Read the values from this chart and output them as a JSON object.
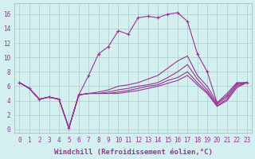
{
  "xlabel": "Windchill (Refroidissement éolien,°C)",
  "bg_color": "#d4efef",
  "grid_color": "#aacccc",
  "line_color": "#993399",
  "x_ticks": [
    0,
    1,
    2,
    3,
    4,
    5,
    6,
    7,
    8,
    9,
    10,
    11,
    12,
    13,
    14,
    15,
    16,
    17,
    18,
    19,
    20,
    21,
    22,
    23
  ],
  "y_ticks": [
    0,
    2,
    4,
    6,
    8,
    10,
    12,
    14,
    16
  ],
  "ylim": [
    -0.5,
    17.5
  ],
  "xlim": [
    -0.5,
    23.5
  ],
  "lines": [
    {
      "y": [
        6.5,
        5.7,
        4.2,
        4.5,
        4.2,
        0.2,
        4.8,
        7.5,
        10.5,
        11.5,
        13.7,
        13.2,
        15.5,
        15.7,
        15.5,
        16.0,
        16.2,
        15.0,
        10.5,
        8.0,
        3.7,
        4.7,
        6.4,
        6.5
      ],
      "marker": true
    },
    {
      "y": [
        6.5,
        5.7,
        4.2,
        4.5,
        4.2,
        0.2,
        4.8,
        5.0,
        5.2,
        5.5,
        6.0,
        6.2,
        6.5,
        7.0,
        7.5,
        8.5,
        9.5,
        10.2,
        7.5,
        6.0,
        3.7,
        5.0,
        6.5,
        6.5
      ],
      "marker": false
    },
    {
      "y": [
        6.5,
        5.7,
        4.2,
        4.5,
        4.2,
        0.2,
        4.8,
        5.0,
        5.0,
        5.2,
        5.5,
        5.7,
        6.0,
        6.2,
        6.5,
        7.2,
        8.0,
        9.0,
        7.0,
        5.5,
        3.5,
        4.5,
        6.2,
        6.5
      ],
      "marker": false
    },
    {
      "y": [
        6.5,
        5.7,
        4.2,
        4.5,
        4.2,
        0.2,
        4.8,
        5.0,
        5.0,
        5.0,
        5.2,
        5.4,
        5.7,
        6.0,
        6.2,
        6.8,
        7.2,
        8.0,
        6.5,
        5.2,
        3.3,
        4.2,
        6.0,
        6.5
      ],
      "marker": false
    },
    {
      "y": [
        6.5,
        5.7,
        4.2,
        4.5,
        4.2,
        0.2,
        4.8,
        5.0,
        5.0,
        5.0,
        5.0,
        5.2,
        5.4,
        5.7,
        6.0,
        6.4,
        6.8,
        7.5,
        6.2,
        5.0,
        3.2,
        4.0,
        5.8,
        6.5
      ],
      "marker": false
    }
  ],
  "fontsize_xlabel": 6.5,
  "tick_fontsize": 5.5
}
